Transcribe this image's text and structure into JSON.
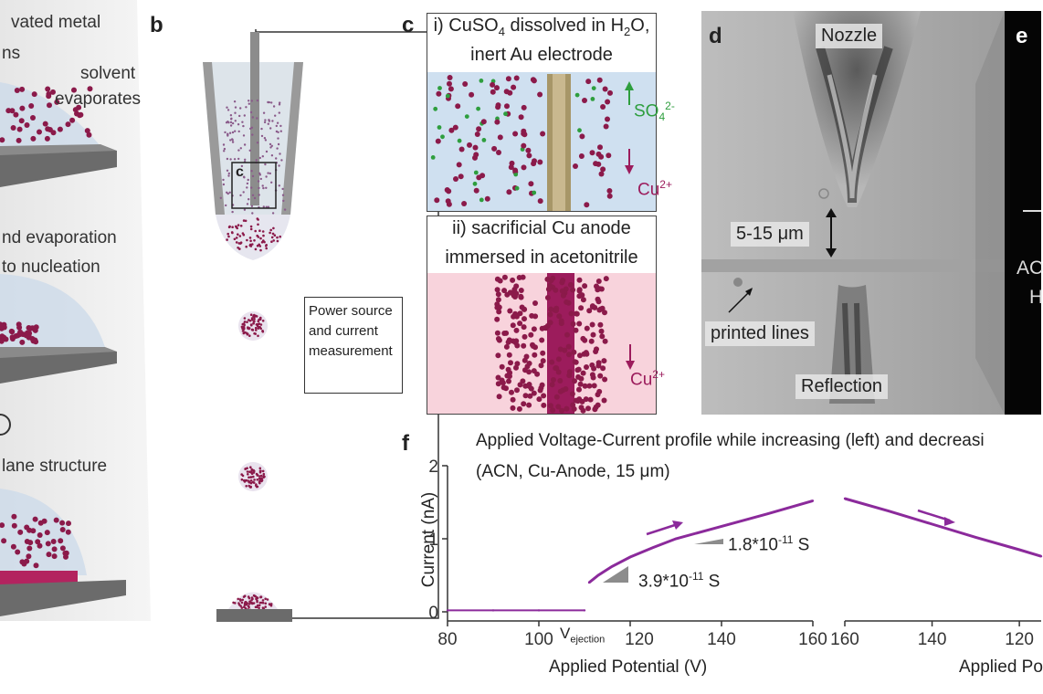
{
  "panel_a": {
    "line1": "vated metal",
    "line2": "ns",
    "solvent_line1": "solvent",
    "solvent_line2": "evaporates",
    "mid_line1": "nd evaporation",
    "mid_line2": "to nucleation",
    "bottom_line1": "lane structure"
  },
  "panel_b": {
    "letter": "b",
    "box_label": "c",
    "power_line1": "Power source",
    "power_line2": "and current",
    "power_line3": "measurement"
  },
  "panel_c": {
    "letter": "c",
    "top_title_line1_pre": "i) CuSO",
    "top_title_sub": "4",
    "top_title_line1_post": " dissolved in H",
    "top_title_sub2": "2",
    "top_title_line1_end": "O,",
    "top_title_line2": "inert Au electrode",
    "ion_sulfate": "SO",
    "ion_sulfate_sub": "4",
    "ion_sulfate_sup": "2-",
    "ion_copper": "Cu",
    "ion_copper_sup": "2+",
    "bottom_title_line1": "ii) sacrificial Cu anode",
    "bottom_title_line2": "immersed in acetonitrile"
  },
  "panel_d": {
    "letter": "d",
    "nozzle": "Nozzle",
    "gap": "5-15 μm",
    "printed_lines": "printed lines",
    "reflection": "Reflection"
  },
  "panel_e": {
    "letter": "e",
    "text1": "AC",
    "text2": "H"
  },
  "panel_f": {
    "letter": "f",
    "title_line1": "Applied Voltage-Current profile while increasing (left) and decreasi",
    "title_line2": "(ACN, Cu-Anode, 15 μm)",
    "ylabel": "Current (nA)",
    "xlabel_left": "Applied Potential (V)",
    "xlabel_right": "Applied Po",
    "v_ejection_main": "V",
    "v_ejection_sub": "ejection",
    "slope1": "1.8*10",
    "slope1_exp": "-11",
    "slope1_unit": " S",
    "slope2": "3.9*10",
    "slope2_exp": "-11",
    "slope2_unit": " S"
  },
  "chart_data": [
    {
      "type": "line",
      "title": "Applied Voltage-Current profile while increasing (left) and decreasi",
      "subtitle": "(ACN, Cu-Anode, 15 μm)",
      "xlabel": "Applied Potential (V)",
      "ylabel": "Current (nA)",
      "xlim": [
        80,
        160
      ],
      "ylim": [
        0,
        2
      ],
      "xticks": [
        "80",
        "100",
        "120",
        "140",
        "160"
      ],
      "yticks": [
        "0",
        "1",
        "2"
      ],
      "series": [
        {
          "x": [
            80,
            90,
            100,
            110,
            111,
            113,
            116,
            120,
            125,
            130,
            140,
            150,
            160
          ],
          "y": [
            0.02,
            0.02,
            0.02,
            0.02,
            0.4,
            0.5,
            0.62,
            0.75,
            0.88,
            1.0,
            1.17,
            1.34,
            1.52
          ]
        }
      ],
      "color": "#8b2a9b"
    },
    {
      "type": "line",
      "xlabel": "Applied Po",
      "xlim": [
        160,
        115
      ],
      "ylim": [
        0,
        2
      ],
      "xticks": [
        "160",
        "140",
        "120"
      ],
      "series": [
        {
          "x": [
            160,
            150,
            140,
            130,
            120,
            115
          ],
          "y": [
            1.55,
            1.38,
            1.2,
            1.02,
            0.85,
            0.76
          ]
        }
      ],
      "color": "#8b2a9b"
    }
  ],
  "colors": {
    "ink": "#8b2a9b",
    "particle": "#8b1a4a",
    "sulfate": "#2e9e3e",
    "water_bg": "#cfe0f0",
    "acn_bg": "#f8d3dc",
    "gold": "#c9b88f",
    "cu_anode": "#9c1c5c",
    "substrate": "#6b6b6b"
  }
}
